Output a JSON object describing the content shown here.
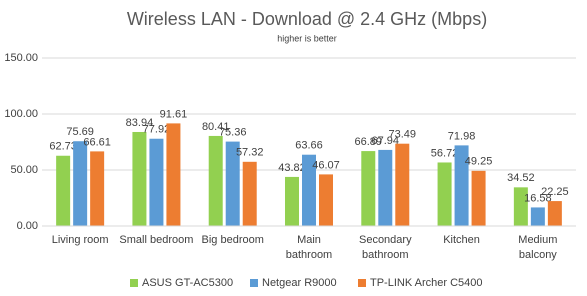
{
  "chart_data": {
    "type": "bar",
    "title": "Wireless LAN - Download @ 2.4 GHz (Mbps)",
    "subtitle": "higher is better",
    "categories": [
      "Living room",
      "Small bedroom",
      "Big bedroom",
      "Main\nbathroom",
      "Secondary\nbathroom",
      "Kitchen",
      "Medium\nbalcony"
    ],
    "series": [
      {
        "name": "ASUS GT-AC5300",
        "color": "#92d050",
        "values": [
          62.73,
          83.94,
          80.41,
          43.82,
          66.89,
          56.72,
          34.52
        ]
      },
      {
        "name": "Netgear R9000",
        "color": "#5b9bd5",
        "values": [
          75.69,
          77.92,
          75.36,
          63.66,
          67.94,
          71.98,
          16.58
        ]
      },
      {
        "name": "TP-LINK Archer C5400",
        "color": "#ed7d31",
        "values": [
          66.61,
          91.61,
          57.32,
          46.07,
          73.49,
          49.25,
          22.25
        ]
      }
    ],
    "ylim": [
      0,
      150
    ],
    "yticks": [
      {
        "value": 0,
        "label": "0.00"
      },
      {
        "value": 50,
        "label": "50.00"
      },
      {
        "value": 100,
        "label": "100.00"
      },
      {
        "value": 150,
        "label": "150.00"
      }
    ],
    "grid": true,
    "legend": "bottom"
  }
}
